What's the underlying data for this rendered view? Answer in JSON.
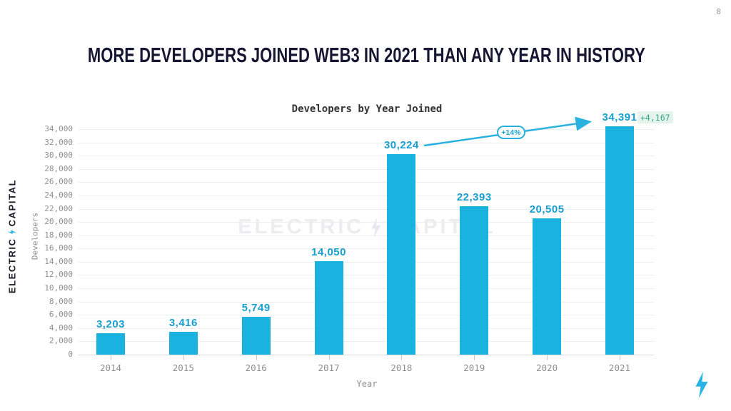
{
  "page": {
    "number": "8"
  },
  "title": "MORE DEVELOPERS JOINED WEB3 IN 2021 THAN ANY YEAR IN HISTORY",
  "branding": {
    "logo_text_left": "ELECTRIC",
    "logo_text_right": "CAPITAL",
    "watermark_text_left": "ELECTRIC",
    "watermark_text_right": "CAPITAL"
  },
  "chart_data": {
    "type": "bar",
    "title": "Developers by Year Joined",
    "xlabel": "Year",
    "ylabel": "Developers",
    "categories": [
      "2014",
      "2015",
      "2016",
      "2017",
      "2018",
      "2019",
      "2020",
      "2021"
    ],
    "values": [
      3203,
      3416,
      5749,
      14050,
      30224,
      22393,
      20505,
      34391
    ],
    "value_labels": [
      "3,203",
      "3,416",
      "5,749",
      "14,050",
      "30,224",
      "22,393",
      "20,505",
      "34,391"
    ],
    "ylim": [
      0,
      34000
    ],
    "ytick_interval": 2000,
    "ytick_labels": [
      "0",
      "2,000",
      "4,000",
      "6,000",
      "8,000",
      "10,000",
      "12,000",
      "14,000",
      "16,000",
      "18,000",
      "20,000",
      "22,000",
      "24,000",
      "26,000",
      "28,000",
      "30,000",
      "32,000",
      "34,000"
    ],
    "grid": true,
    "legend": "none",
    "annotations": [
      {
        "type": "growth-badge",
        "label": "+14%",
        "from_category": "2018",
        "to_category": "2021"
      },
      {
        "type": "delta-badge",
        "label": "+4,167",
        "category": "2021"
      }
    ],
    "colors": {
      "bar": "#1ab3e0",
      "value_label": "#189fd1",
      "annotation_line": "#29b1e0",
      "delta_badge_bg": "#e4f4ed",
      "delta_badge_text": "#3aa58c",
      "axis_text": "#8f8f8f",
      "gridline": "#ededed",
      "chart_title_text": "#333333",
      "slide_title_text": "#181733"
    }
  }
}
